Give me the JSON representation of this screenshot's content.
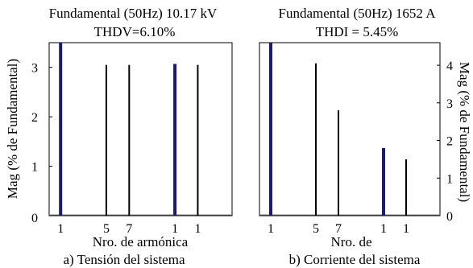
{
  "chart_data": [
    {
      "type": "bar",
      "title": "Fundamental (50Hz) 10.17 kV",
      "subtitle": "THDV=6.10%",
      "xlabel": "Nro. de armónica",
      "ylabel": "Mag (% de Fundamental)",
      "caption": "a) Tensión del sistema",
      "yticks": [
        "0",
        "1",
        "2",
        "3"
      ],
      "ylim": [
        0,
        3.5
      ],
      "xticks": [
        "1",
        "5",
        "7",
        "1",
        "1"
      ],
      "x": [
        1,
        5,
        7,
        11,
        13
      ],
      "values": [
        3.5,
        3.05,
        3.05,
        3.07,
        3.05
      ],
      "bar_colors": [
        "#1a1a6e",
        "#000000",
        "#000000",
        "#1a1a6e",
        "#000000"
      ],
      "xlim": [
        0,
        16
      ]
    },
    {
      "type": "bar",
      "title": "Fundamental (50Hz) 1652 A",
      "subtitle": "THDI = 5.45%",
      "xlabel": "Nro. de",
      "ylabel": "Mag (% de Fundamental)",
      "caption": "b) Corriente del sistema",
      "yticks": [
        "0",
        "1",
        "2",
        "3",
        "4"
      ],
      "ylim": [
        0,
        4.6
      ],
      "xticks": [
        "1",
        "5",
        "7",
        "1",
        "1"
      ],
      "x": [
        1,
        5,
        7,
        11,
        13
      ],
      "values": [
        4.6,
        4.05,
        2.8,
        1.8,
        1.5
      ],
      "bar_colors": [
        "#1a1a6e",
        "#000000",
        "#000000",
        "#1a1a6e",
        "#000000"
      ],
      "xlim": [
        0,
        16
      ]
    }
  ]
}
